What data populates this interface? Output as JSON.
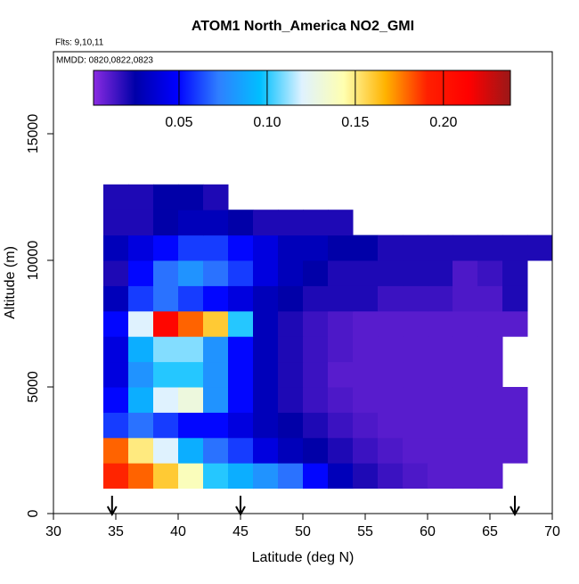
{
  "chart_data": {
    "type": "heatmap",
    "title": "ATOM1 North_America NO2_GMI",
    "subtitle": "Flts: 9,10,11",
    "annotation": "MMDD: 0820,0822,0823",
    "xlabel": "Latitude (deg N)",
    "ylabel": "Altitude (m)",
    "xlim": [
      30,
      70
    ],
    "ylim": [
      0,
      18240
    ],
    "xticks": [
      30,
      35,
      40,
      45,
      50,
      55,
      60,
      65,
      70
    ],
    "yticks": [
      0,
      5000,
      10000,
      15000
    ],
    "x_edges": [
      34,
      36,
      38,
      40,
      42,
      44,
      46,
      48,
      50,
      52,
      54,
      56,
      58,
      60,
      62,
      64,
      66,
      68,
      70
    ],
    "y_edges": [
      1000,
      2000,
      3000,
      4000,
      5000,
      6000,
      7000,
      8000,
      9000,
      10000,
      11000,
      12000,
      13000
    ],
    "z": [
      [
        0.19,
        0.18,
        0.16,
        0.14,
        0.1,
        0.09,
        0.08,
        0.07,
        0.05,
        0.03,
        0.02,
        0.015,
        0.012,
        0.01,
        0.01,
        0.01,
        null,
        null
      ],
      [
        0.18,
        0.15,
        0.12,
        0.09,
        0.07,
        0.06,
        0.04,
        0.03,
        0.025,
        0.02,
        0.015,
        0.012,
        0.01,
        0.01,
        0.01,
        0.01,
        0.01,
        null
      ],
      [
        0.06,
        0.07,
        0.06,
        0.05,
        0.05,
        0.04,
        0.03,
        0.025,
        0.02,
        0.015,
        0.012,
        0.01,
        0.01,
        0.01,
        0.01,
        0.01,
        0.01,
        null
      ],
      [
        0.05,
        0.09,
        0.12,
        0.13,
        0.08,
        0.05,
        0.03,
        0.02,
        0.015,
        0.012,
        0.01,
        0.01,
        0.01,
        0.01,
        0.01,
        0.01,
        0.01,
        null
      ],
      [
        0.04,
        0.08,
        0.1,
        0.1,
        0.08,
        0.05,
        0.03,
        0.02,
        0.015,
        0.01,
        0.01,
        0.01,
        0.01,
        0.01,
        0.01,
        0.01,
        null,
        null
      ],
      [
        0.04,
        0.09,
        0.11,
        0.11,
        0.08,
        0.05,
        0.03,
        0.02,
        0.015,
        0.012,
        0.01,
        0.01,
        0.01,
        0.01,
        0.01,
        0.01,
        null,
        null
      ],
      [
        0.05,
        0.12,
        0.21,
        0.18,
        0.16,
        0.1,
        0.03,
        0.02,
        0.015,
        0.012,
        0.01,
        0.01,
        0.01,
        0.01,
        0.01,
        0.01,
        0.01,
        null
      ],
      [
        0.03,
        0.06,
        0.07,
        0.06,
        0.05,
        0.04,
        0.03,
        0.025,
        0.02,
        0.02,
        0.02,
        0.015,
        0.015,
        0.015,
        0.012,
        0.012,
        0.02,
        null
      ],
      [
        0.02,
        0.05,
        0.07,
        0.08,
        0.07,
        0.06,
        0.04,
        0.03,
        0.025,
        0.02,
        0.02,
        0.02,
        0.02,
        0.02,
        0.012,
        0.015,
        0.02,
        null
      ],
      [
        0.03,
        0.04,
        0.05,
        0.06,
        0.06,
        0.05,
        0.04,
        0.03,
        0.03,
        0.025,
        0.025,
        0.02,
        0.02,
        0.02,
        0.02,
        0.02,
        0.02,
        0.02
      ],
      [
        0.02,
        0.02,
        0.025,
        0.03,
        0.03,
        0.025,
        0.02,
        0.02,
        0.02,
        0.02,
        null,
        null,
        null,
        null,
        null,
        null,
        null,
        null
      ],
      [
        0.02,
        0.02,
        0.025,
        0.025,
        0.02,
        null,
        null,
        null,
        null,
        null,
        null,
        null,
        null,
        null,
        null,
        null,
        null,
        null
      ]
    ],
    "colormap": [
      "#8a2be2",
      "#0000a8",
      "#0000ff",
      "#2f7fff",
      "#00bfff",
      "#dff2ff",
      "#ffffb0",
      "#ffb300",
      "#ff2000",
      "#ff0000",
      "#9a1818"
    ],
    "clim": [
      0.0015,
      0.238
    ],
    "cticks": [
      0.05,
      {
        "value": 0.1,
        "label": "0.10"
      },
      0.15,
      {
        "value": 0.2,
        "label": "0.20"
      }
    ],
    "arrows_x": [
      34.7,
      45,
      67
    ]
  }
}
